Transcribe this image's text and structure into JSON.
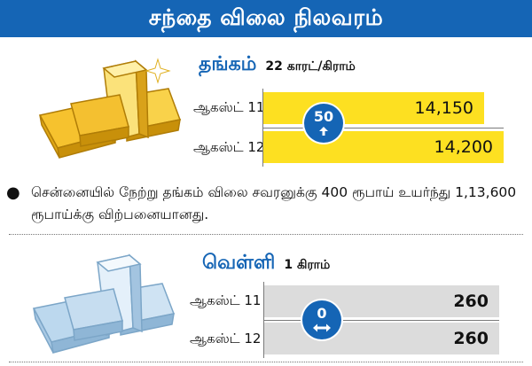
{
  "header": {
    "title": "சந்தை விலை நிலவரம்"
  },
  "gold": {
    "title": "தங்கம்",
    "unit": "22 காரட்/கிராம்",
    "rows": [
      {
        "date": "ஆகஸ்ட் 11",
        "price": "14,150"
      },
      {
        "date": "ஆகஸ்ட் 12",
        "price": "14,200"
      }
    ],
    "change": "50",
    "change_icon": "arrow-up-icon",
    "note": "சென்னையில் நேற்று தங்கம் விலை சவரனுக்கு 400 ரூபாய் உயர்ந்து 1,13,600 ரூபாய்க்கு விற்பனையானது."
  },
  "silver": {
    "title": "வெள்ளி",
    "unit": "1 கிராம்",
    "rows": [
      {
        "date": "ஆகஸ்ட் 11",
        "price": "260"
      },
      {
        "date": "ஆகஸ்ட் 12",
        "price": "260"
      }
    ],
    "change": "0",
    "change_icon": "double-arrow-horizontal-icon"
  },
  "colors": {
    "header_bg": "#1565b5",
    "title_blue": "#1565b5",
    "gold_bar": "#fde021",
    "silver_bar": "#dcdcdc",
    "badge": "#1565b5"
  }
}
